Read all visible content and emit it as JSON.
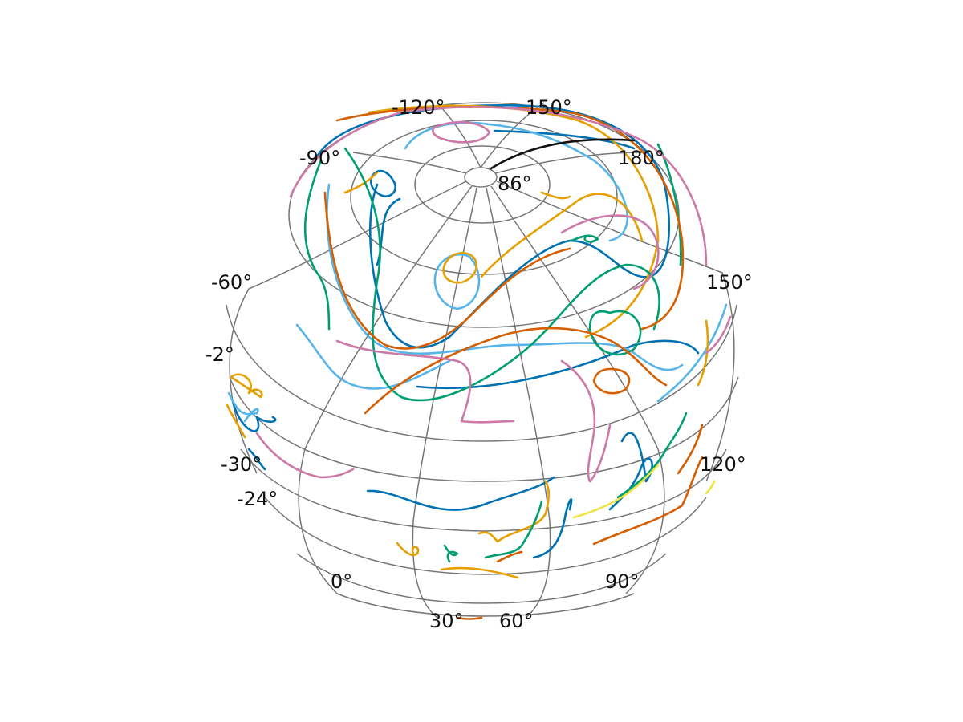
{
  "map": {
    "projection": "orthographic globe",
    "gridlines": true,
    "graticule_labels": [
      "-120°",
      "150°",
      "-90°",
      "180°",
      "86°",
      "-60°",
      "150°",
      "-2°",
      "-30°",
      "-24°",
      "120°",
      "0°",
      "90°",
      "30°",
      "60°"
    ]
  },
  "trajectory_colors": [
    "#0072B2",
    "#56B4E9",
    "#E69F00",
    "#009E73",
    "#D55E00",
    "#CC79A7",
    "#F0E442",
    "#000000"
  ]
}
